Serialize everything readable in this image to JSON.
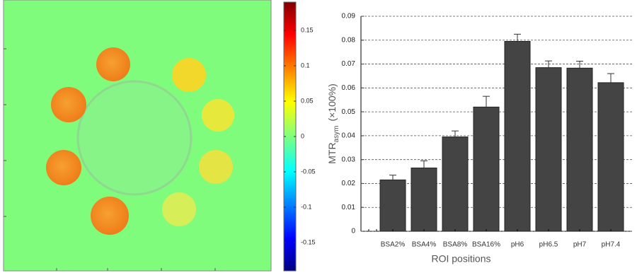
{
  "chart_data": [
    {
      "type": "colormap",
      "colorbar_lim": [
        -0.19,
        0.19
      ],
      "colorbar_ticks": [
        0.15,
        0.1,
        0.05,
        0,
        -0.05,
        -0.1,
        -0.15
      ]
    },
    {
      "type": "bar",
      "xlabel": "ROI positions",
      "ylabel": {
        "main": "MTR",
        "sub": "asym",
        "unit": "(×100%)"
      },
      "categories": [
        "BSA2%",
        "BSA4%",
        "BSA8%",
        "BSA16%",
        "pH6",
        "pH6.5",
        "pH7",
        "pH7.4"
      ],
      "values": [
        0.0215,
        0.0265,
        0.0395,
        0.052,
        0.0795,
        0.0685,
        0.0683,
        0.0622
      ],
      "errors": [
        0.002,
        0.003,
        0.0025,
        0.0045,
        0.003,
        0.0028,
        0.0029,
        0.0038
      ],
      "color": "#444444",
      "ylim": [
        0,
        0.09
      ],
      "yticks": [
        0,
        0.01,
        0.02,
        0.03,
        0.04,
        0.05,
        0.06,
        0.07,
        0.08,
        0.09
      ],
      "grid": true
    }
  ]
}
